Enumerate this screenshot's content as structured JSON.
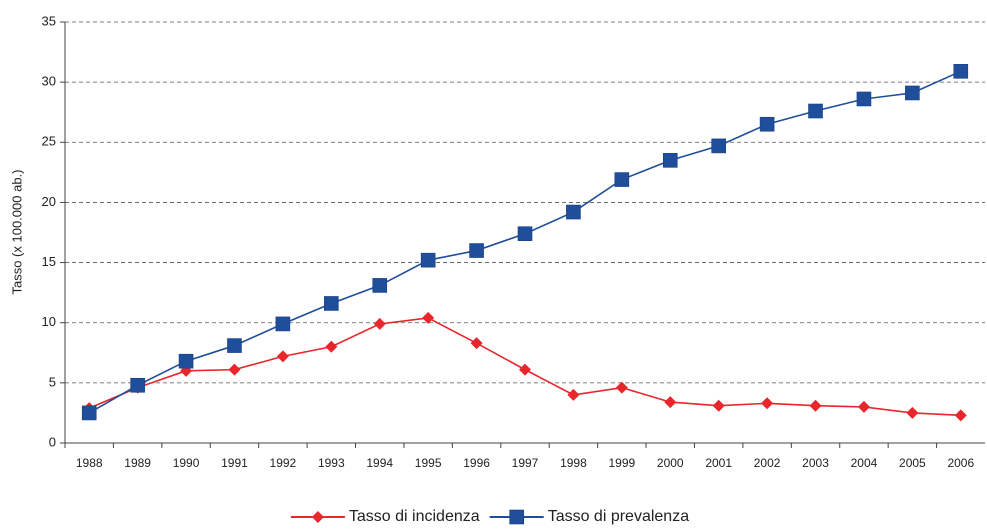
{
  "chart_data": {
    "type": "line",
    "y_label": "Tasso (x 100.000 ab.)",
    "categories": [
      "1988",
      "1989",
      "1990",
      "1991",
      "1992",
      "1993",
      "1994",
      "1995",
      "1996",
      "1997",
      "1998",
      "1999",
      "2000",
      "2001",
      "2002",
      "2003",
      "2004",
      "2005",
      "2006"
    ],
    "series": [
      {
        "name": "Tasso di incidenza",
        "color": "#e8262b",
        "marker": "diamond",
        "values": [
          2.9,
          4.6,
          6.0,
          6.1,
          7.2,
          8.0,
          9.9,
          10.4,
          8.3,
          6.1,
          4.0,
          4.6,
          3.4,
          3.1,
          3.3,
          3.1,
          3.0,
          2.5,
          2.3
        ]
      },
      {
        "name": "Tasso di prevalenza",
        "color": "#1f4e9b",
        "marker": "square",
        "values": [
          2.5,
          4.8,
          6.8,
          8.1,
          9.9,
          11.6,
          13.1,
          15.2,
          16.0,
          17.4,
          19.2,
          21.9,
          23.5,
          24.7,
          26.5,
          27.6,
          28.6,
          29.1,
          30.9
        ]
      }
    ],
    "ylim": [
      0,
      35
    ],
    "yticks": [
      0,
      5,
      10,
      15,
      20,
      25,
      30,
      35
    ],
    "grid": true,
    "legend": "bottom"
  }
}
